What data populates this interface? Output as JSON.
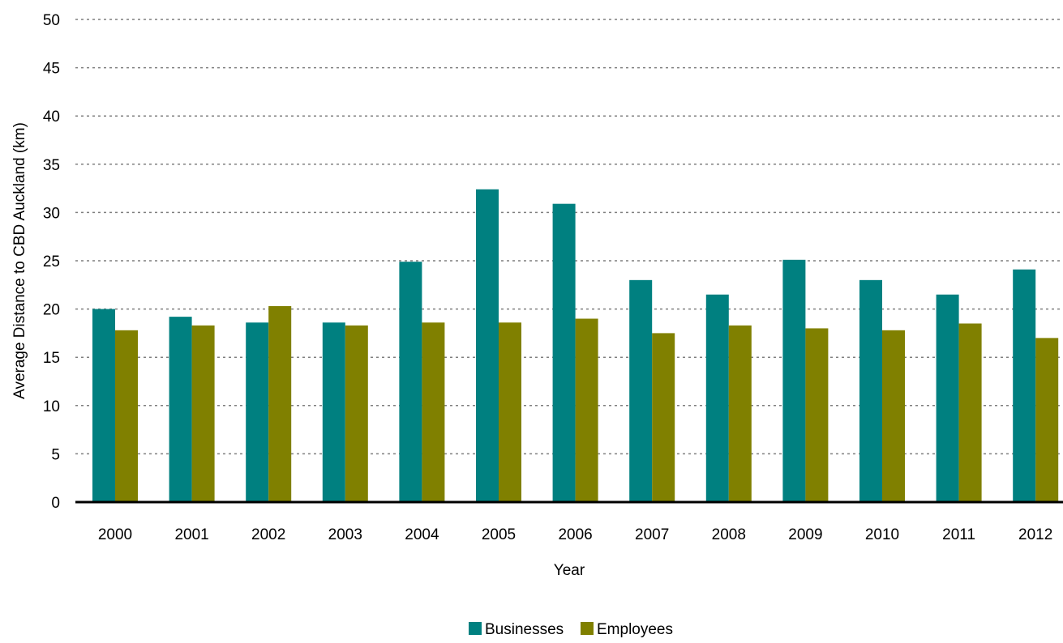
{
  "chart_data": {
    "type": "bar",
    "xlabel": "Year",
    "ylabel": "Average Distance to CBD Auckland (km)",
    "categories": [
      "2000",
      "2001",
      "2002",
      "2003",
      "2004",
      "2005",
      "2006",
      "2007",
      "2008",
      "2009",
      "2010",
      "2011",
      "2012"
    ],
    "ylim": [
      0,
      50
    ],
    "yticks": [
      0,
      5,
      10,
      15,
      20,
      25,
      30,
      35,
      40,
      45,
      50
    ],
    "grid": true,
    "legend_position": "bottom-center",
    "series": [
      {
        "name": "Businesses",
        "color": "#008080",
        "values": [
          20.0,
          19.2,
          18.6,
          18.6,
          24.9,
          32.4,
          30.9,
          23.0,
          21.5,
          25.1,
          23.0,
          21.5,
          24.1
        ]
      },
      {
        "name": "Employees",
        "color": "#808000",
        "values": [
          17.8,
          18.3,
          20.3,
          18.3,
          18.6,
          18.6,
          19.0,
          17.5,
          18.3,
          18.0,
          17.8,
          18.5,
          17.0
        ]
      }
    ]
  }
}
